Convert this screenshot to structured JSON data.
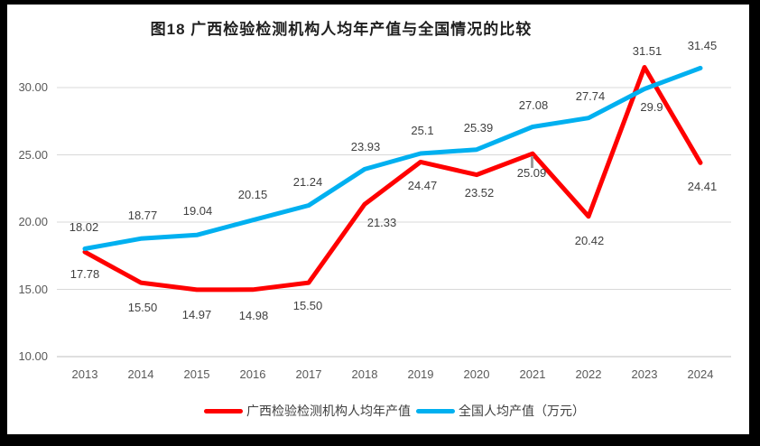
{
  "title": "图18 广西检验检测机构人均年产值与全国情况的比较",
  "colors": {
    "frame": "#000000",
    "background": "#ffffff",
    "gridline": "#d9d9d9",
    "axis_line": "#bfbfbf",
    "data_label": "#404040",
    "axis_text": "#595959",
    "series_guangxi": "#ff0000",
    "series_national": "#00b0f0"
  },
  "chart_data": {
    "type": "line",
    "title": "图18 广西检验检测机构人均年产值与全国情况的比较",
    "categories": [
      "2013",
      "2014",
      "2015",
      "2016",
      "2017",
      "2018",
      "2019",
      "2020",
      "2021",
      "2022",
      "2023",
      "2024"
    ],
    "series": [
      {
        "name": "广西检验检测机构人均年产值",
        "color": "#ff0000",
        "values": [
          17.78,
          15.5,
          14.97,
          14.98,
          15.5,
          21.33,
          24.47,
          23.52,
          25.09,
          20.42,
          31.51,
          24.41
        ],
        "labels": [
          "17.78",
          "15.50",
          "14.97",
          "14.98",
          "15.50",
          "21.33",
          "24.47",
          "23.52",
          "25.09",
          "20.42",
          "31.51",
          "24.41"
        ]
      },
      {
        "name": "全国人均产值（万元）",
        "color": "#00b0f0",
        "values": [
          18.02,
          18.77,
          19.04,
          20.15,
          21.24,
          23.93,
          25.1,
          25.39,
          27.08,
          27.74,
          29.9,
          31.45
        ],
        "labels": [
          "18.02",
          "18.77",
          "19.04",
          "20.15",
          "21.24",
          "23.93",
          "25.1",
          "25.39",
          "27.08",
          "27.74",
          "29.9",
          "31.45"
        ]
      }
    ],
    "y_ticks": [
      "30.00",
      "25.00",
      "20.00",
      "15.00",
      "10.00"
    ],
    "ylim": [
      10,
      32.5
    ],
    "xlabel": "",
    "ylabel": "",
    "grid": true,
    "legend_position": "bottom"
  }
}
